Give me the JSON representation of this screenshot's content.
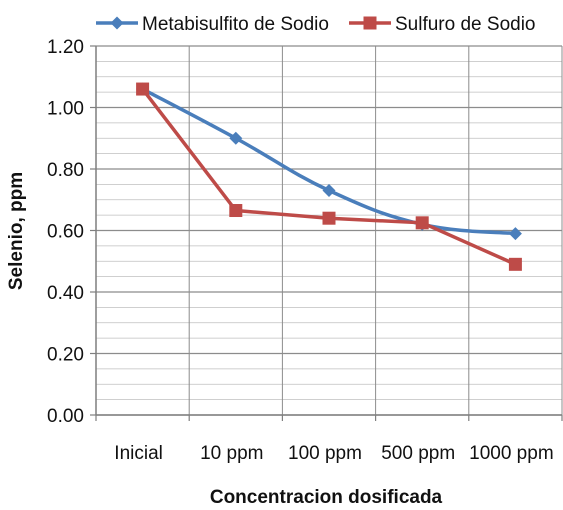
{
  "chart_data": {
    "type": "line",
    "title": "",
    "xlabel": "Concentracion dosificada",
    "ylabel": "Selenio, ppm",
    "categories": [
      "Inicial",
      "10 ppm",
      "100 ppm",
      "500 ppm",
      "1000 ppm"
    ],
    "ylim": [
      0,
      1.2
    ],
    "yticks": [
      "0.00",
      "0.20",
      "0.40",
      "0.60",
      "0.80",
      "1.00",
      "1.20"
    ],
    "grid": true,
    "legend_position": "top",
    "series": [
      {
        "name": "Metabisulfito de Sodio",
        "values": [
          1.06,
          0.9,
          0.73,
          0.62,
          0.59
        ],
        "color": "#4a7ebb",
        "marker": "diamond"
      },
      {
        "name": "Sulfuro de Sodio",
        "values": [
          1.06,
          0.665,
          0.64,
          0.625,
          0.49
        ],
        "color": "#be4b48",
        "marker": "square"
      }
    ]
  }
}
